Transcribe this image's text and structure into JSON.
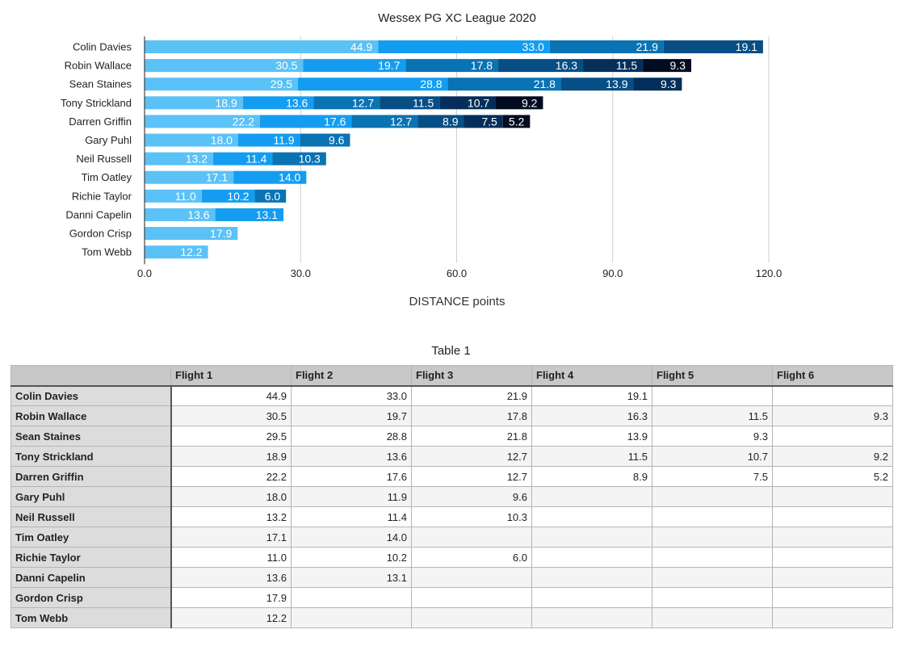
{
  "chart_data": {
    "type": "bar",
    "orientation": "horizontal",
    "stacked": true,
    "title": "Wessex PG XC League 2020",
    "xlabel": "DISTANCE points",
    "xlim": [
      0,
      120
    ],
    "xticks": [
      "0.0",
      "30.0",
      "60.0",
      "90.0",
      "120.0"
    ],
    "grid": true,
    "categories": [
      "Colin Davies",
      "Robin Wallace",
      "Sean Staines",
      "Tony Strickland",
      "Darren Griffin",
      "Gary Puhl",
      "Neil Russell",
      "Tim Oatley",
      "Richie Taylor",
      "Danni Capelin",
      "Gordon Crisp",
      "Tom Webb"
    ],
    "series": [
      {
        "name": "Flight 1",
        "color": "#5bc2f7",
        "values": [
          44.9,
          30.5,
          29.5,
          18.9,
          22.2,
          18.0,
          13.2,
          17.1,
          11.0,
          13.6,
          17.9,
          12.2
        ]
      },
      {
        "name": "Flight 2",
        "color": "#149df0",
        "values": [
          33.0,
          19.7,
          28.8,
          13.6,
          17.6,
          11.9,
          11.4,
          14.0,
          10.2,
          13.1,
          null,
          null
        ]
      },
      {
        "name": "Flight 3",
        "color": "#0a73b4",
        "values": [
          21.9,
          17.8,
          21.8,
          12.7,
          12.7,
          9.6,
          10.3,
          null,
          6.0,
          null,
          null,
          null
        ]
      },
      {
        "name": "Flight 4",
        "color": "#074e85",
        "values": [
          19.1,
          16.3,
          13.9,
          11.5,
          8.9,
          null,
          null,
          null,
          null,
          null,
          null,
          null
        ]
      },
      {
        "name": "Flight 5",
        "color": "#052f5a",
        "values": [
          null,
          11.5,
          9.3,
          10.7,
          7.5,
          null,
          null,
          null,
          null,
          null,
          null,
          null
        ]
      },
      {
        "name": "Flight 6",
        "color": "#020c20",
        "values": [
          null,
          9.3,
          null,
          9.2,
          5.2,
          null,
          null,
          null,
          null,
          null,
          null,
          null
        ]
      }
    ]
  },
  "table": {
    "title": "Table 1",
    "corner": "",
    "headers": [
      "Flight 1",
      "Flight 2",
      "Flight 3",
      "Flight 4",
      "Flight 5",
      "Flight 6"
    ],
    "rows": [
      {
        "name": "Colin Davies",
        "cells": [
          "44.9",
          "33.0",
          "21.9",
          "19.1",
          "",
          ""
        ]
      },
      {
        "name": "Robin Wallace",
        "cells": [
          "30.5",
          "19.7",
          "17.8",
          "16.3",
          "11.5",
          "9.3"
        ]
      },
      {
        "name": "Sean Staines",
        "cells": [
          "29.5",
          "28.8",
          "21.8",
          "13.9",
          "9.3",
          ""
        ]
      },
      {
        "name": "Tony Strickland",
        "cells": [
          "18.9",
          "13.6",
          "12.7",
          "11.5",
          "10.7",
          "9.2"
        ]
      },
      {
        "name": "Darren Griffin",
        "cells": [
          "22.2",
          "17.6",
          "12.7",
          "8.9",
          "7.5",
          "5.2"
        ]
      },
      {
        "name": "Gary Puhl",
        "cells": [
          "18.0",
          "11.9",
          "9.6",
          "",
          "",
          ""
        ]
      },
      {
        "name": "Neil Russell",
        "cells": [
          "13.2",
          "11.4",
          "10.3",
          "",
          "",
          ""
        ]
      },
      {
        "name": "Tim Oatley",
        "cells": [
          "17.1",
          "14.0",
          "",
          "",
          "",
          ""
        ]
      },
      {
        "name": "Richie Taylor",
        "cells": [
          "11.0",
          "10.2",
          "6.0",
          "",
          "",
          ""
        ]
      },
      {
        "name": "Danni Capelin",
        "cells": [
          "13.6",
          "13.1",
          "",
          "",
          "",
          ""
        ]
      },
      {
        "name": "Gordon Crisp",
        "cells": [
          "17.9",
          "",
          "",
          "",
          "",
          ""
        ]
      },
      {
        "name": "Tom Webb",
        "cells": [
          "12.2",
          "",
          "",
          "",
          "",
          ""
        ]
      }
    ]
  }
}
